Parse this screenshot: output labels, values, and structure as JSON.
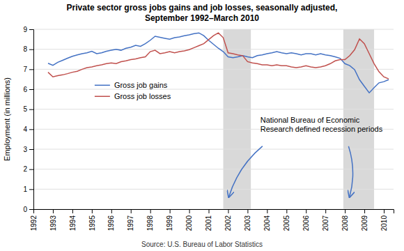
{
  "chart_data": {
    "type": "line",
    "title": "Private sector gross jobs gains and job losses, seasonally adjusted,\nSeptember 1992–March 2010",
    "y_label": "Employment (in millions)",
    "source": "Source: U.S. Bureau of Labor Statistics",
    "annotation": "National Bureau of Economic\nResearch defined recession periods",
    "xlim": [
      1992.0,
      2010.5
    ],
    "xticks": [
      1992,
      1993,
      1994,
      1995,
      1996,
      1997,
      1998,
      1999,
      2000,
      2001,
      2002,
      2003,
      2004,
      2005,
      2006,
      2007,
      2008,
      2009,
      2010
    ],
    "ylim": [
      0,
      9
    ],
    "yticks": [
      0,
      1,
      2,
      3,
      4,
      5,
      6,
      7,
      8,
      9
    ],
    "grid": true,
    "legend": "upper left",
    "recession_periods": [
      [
        2001.75,
        2003.17
      ],
      [
        2007.92,
        2009.5
      ]
    ],
    "recession_color": "#D9D9D9",
    "x": [
      1992.75,
      1993.0,
      1993.25,
      1993.5,
      1993.75,
      1994.0,
      1994.25,
      1994.5,
      1994.75,
      1995.0,
      1995.25,
      1995.5,
      1995.75,
      1996.0,
      1996.25,
      1996.5,
      1996.75,
      1997.0,
      1997.25,
      1997.5,
      1997.75,
      1998.0,
      1998.25,
      1998.5,
      1998.75,
      1999.0,
      1999.25,
      1999.5,
      1999.75,
      2000.0,
      2000.25,
      2000.5,
      2000.75,
      2001.0,
      2001.25,
      2001.5,
      2001.75,
      2002.0,
      2002.25,
      2002.5,
      2002.75,
      2003.0,
      2003.25,
      2003.5,
      2003.75,
      2004.0,
      2004.25,
      2004.5,
      2004.75,
      2005.0,
      2005.25,
      2005.5,
      2005.75,
      2006.0,
      2006.25,
      2006.5,
      2006.75,
      2007.0,
      2007.25,
      2007.5,
      2007.75,
      2008.0,
      2008.25,
      2008.5,
      2008.75,
      2009.0,
      2009.25,
      2009.5,
      2009.75,
      2010.0,
      2010.25
    ],
    "series": [
      {
        "name": "Gross job gains",
        "color": "#4472C4",
        "values": [
          7.3,
          7.2,
          7.35,
          7.45,
          7.55,
          7.65,
          7.72,
          7.78,
          7.82,
          7.9,
          7.78,
          7.82,
          7.9,
          7.95,
          8.0,
          7.95,
          8.05,
          8.1,
          8.2,
          8.15,
          8.28,
          8.45,
          8.65,
          8.6,
          8.55,
          8.5,
          8.58,
          8.62,
          8.68,
          8.72,
          8.78,
          8.82,
          8.68,
          8.45,
          8.25,
          8.05,
          7.88,
          7.62,
          7.58,
          7.62,
          7.68,
          7.62,
          7.58,
          7.68,
          7.72,
          7.78,
          7.82,
          7.88,
          7.82,
          7.78,
          7.82,
          7.78,
          7.72,
          7.78,
          7.78,
          7.72,
          7.78,
          7.72,
          7.68,
          7.62,
          7.55,
          7.28,
          7.18,
          6.98,
          6.48,
          6.15,
          5.82,
          6.08,
          6.32,
          6.38,
          6.48
        ]
      },
      {
        "name": "Gross job losses",
        "color": "#C0504D",
        "values": [
          6.85,
          6.62,
          6.68,
          6.72,
          6.78,
          6.85,
          6.9,
          7.0,
          7.08,
          7.12,
          7.18,
          7.22,
          7.28,
          7.32,
          7.28,
          7.38,
          7.42,
          7.48,
          7.52,
          7.58,
          7.62,
          7.88,
          7.95,
          7.78,
          7.82,
          7.88,
          7.82,
          7.88,
          7.92,
          7.98,
          8.08,
          8.18,
          8.28,
          8.48,
          8.68,
          8.82,
          8.58,
          7.82,
          7.78,
          7.72,
          7.68,
          7.38,
          7.32,
          7.28,
          7.22,
          7.22,
          7.18,
          7.22,
          7.18,
          7.18,
          7.12,
          7.08,
          7.12,
          7.18,
          7.12,
          7.08,
          7.12,
          7.18,
          7.28,
          7.42,
          7.48,
          7.48,
          7.68,
          7.98,
          8.52,
          8.28,
          7.78,
          7.28,
          6.88,
          6.62,
          6.52
        ]
      }
    ]
  }
}
